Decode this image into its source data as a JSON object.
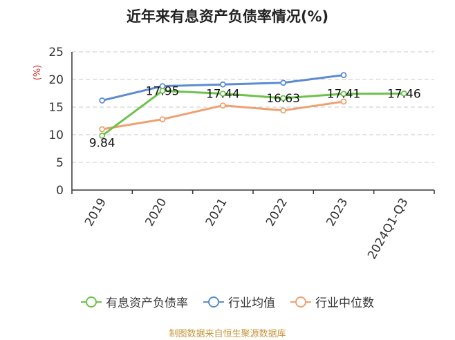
{
  "chart_data": {
    "type": "line",
    "title": "近年来有息资产负债率情况(%)",
    "ylabel": "(%)",
    "categories": [
      "2019",
      "2020",
      "2021",
      "2022",
      "2023",
      "2024Q1-Q3"
    ],
    "ylim": [
      0,
      25
    ],
    "yticks": [
      0,
      5,
      10,
      15,
      20,
      25
    ],
    "grid": true,
    "legend_position": "bottom",
    "series": [
      {
        "name": "有息资产负债率",
        "color": "#6cc24a",
        "values": [
          9.84,
          17.95,
          17.44,
          16.63,
          17.41,
          17.46
        ],
        "labels": [
          "9.84",
          "17.95",
          "17.44",
          "16.63",
          "17.41",
          "17.46"
        ]
      },
      {
        "name": "行业均值",
        "color": "#5b8bd1",
        "values": [
          16.2,
          18.8,
          19.1,
          19.4,
          20.8,
          null
        ]
      },
      {
        "name": "行业中位数",
        "color": "#f0a070",
        "values": [
          11.0,
          12.8,
          15.3,
          14.4,
          16.0,
          null
        ]
      }
    ]
  },
  "source": "制图数据来自恒生聚源数据库"
}
